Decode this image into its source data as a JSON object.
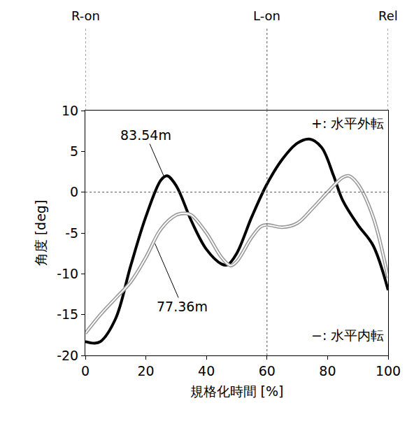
{
  "chart_data": {
    "type": "line",
    "x_title": "規格化時間 [%]",
    "y_title": "角度 [deg]",
    "xlim": [
      0,
      100
    ],
    "ylim": [
      -20,
      10
    ],
    "xticks": [
      0,
      20,
      40,
      60,
      80,
      100
    ],
    "yticks": [
      -20,
      -15,
      -10,
      -5,
      0,
      5,
      10
    ],
    "grid": false,
    "series": [
      {
        "name": "83.54m",
        "color": "#000000",
        "line_style": "solid",
        "x": [
          0,
          3,
          5,
          10,
          15,
          20,
          25,
          27,
          30,
          35,
          40,
          45,
          47,
          50,
          55,
          60,
          65,
          70,
          74,
          78,
          82,
          85,
          90,
          95,
          100
        ],
        "values": [
          -18.3,
          -18.5,
          -18.3,
          -15.5,
          -9,
          -3,
          1.5,
          2,
          0.8,
          -3.5,
          -7,
          -8.8,
          -8.9,
          -7.5,
          -3,
          1,
          4,
          6,
          6.5,
          5.5,
          2,
          -1,
          -4,
          -6.5,
          -12
        ]
      },
      {
        "name": "77.36m",
        "color": "#999999",
        "line_style": "double",
        "x": [
          0,
          5,
          10,
          15,
          20,
          25,
          30,
          33,
          35,
          40,
          45,
          48,
          50,
          55,
          58,
          60,
          65,
          70,
          75,
          80,
          85,
          87,
          90,
          95,
          100
        ],
        "values": [
          -17.3,
          -15,
          -13,
          -11,
          -8,
          -4.5,
          -2.8,
          -2.6,
          -2.8,
          -5,
          -8,
          -9,
          -8.5,
          -5.5,
          -4.2,
          -4,
          -4.3,
          -3.8,
          -2,
          0,
          1.8,
          2,
          1,
          -3,
          -10.5
        ]
      }
    ],
    "events": [
      {
        "label": "R-on",
        "x": 0
      },
      {
        "label": "L-on",
        "x": 60
      },
      {
        "label": "Rel",
        "x": 100
      }
    ],
    "vlines": [
      60
    ],
    "hlines": [
      0
    ],
    "annotations": [
      {
        "text": "83.54m",
        "x": 20,
        "y": 7,
        "point_x": 26,
        "point_y": 1.9
      },
      {
        "text": "77.36m",
        "x": 32,
        "y": -14,
        "point_x": 23,
        "point_y": -6.3
      },
      {
        "text": "+: 水平外転",
        "x": 99,
        "y": 8.5
      },
      {
        "text": "−: 水平内転",
        "x": 99,
        "y": -17.5
      }
    ]
  }
}
